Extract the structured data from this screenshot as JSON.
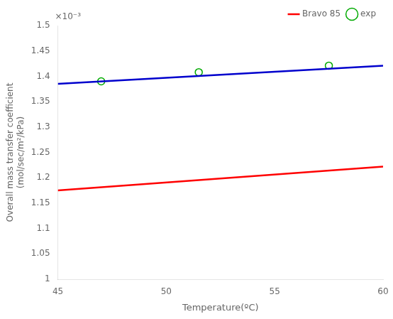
{
  "chart_data": {
    "type": "line",
    "xlabel": "Temperature(ºC)",
    "ylabel": "Overall mass transfer coefficient\n(mol/sec/m²/kPa)",
    "annotations": [
      "×10⁻³"
    ],
    "series": [
      {
        "type": "line",
        "color": "#0000CD",
        "x": [
          45,
          60
        ],
        "values": [
          0.001385,
          0.001421
        ]
      },
      {
        "type": "line",
        "name": "Bravo 85",
        "color": "#FF0000",
        "x": [
          45,
          60
        ],
        "values": [
          0.001175,
          0.001222
        ]
      },
      {
        "type": "scatter",
        "name": "exp",
        "color": "#00AA00",
        "marker": "circle",
        "x": [
          47.0,
          51.5,
          57.5
        ],
        "values": [
          0.00139,
          0.001408,
          0.001421
        ]
      }
    ],
    "xlim": [
      45,
      60
    ],
    "xticks": [
      45,
      50,
      55,
      60
    ],
    "ylim": [
      0.001,
      0.0015
    ],
    "yticks": [
      {
        "value": 0.001,
        "label": "1"
      },
      {
        "value": 0.00105,
        "label": "1.05"
      },
      {
        "value": 0.0011,
        "label": "1.1"
      },
      {
        "value": 0.00115,
        "label": "1.15"
      },
      {
        "value": 0.0012,
        "label": "1.2"
      },
      {
        "value": 0.00125,
        "label": "1.25"
      },
      {
        "value": 0.0013,
        "label": "1.3"
      },
      {
        "value": 0.00135,
        "label": "1.35"
      },
      {
        "value": 0.0014,
        "label": "1.4"
      },
      {
        "value": 0.00145,
        "label": "1.45"
      },
      {
        "value": 0.0015,
        "label": "1.5"
      }
    ],
    "grid": false,
    "legend": "upper right"
  }
}
